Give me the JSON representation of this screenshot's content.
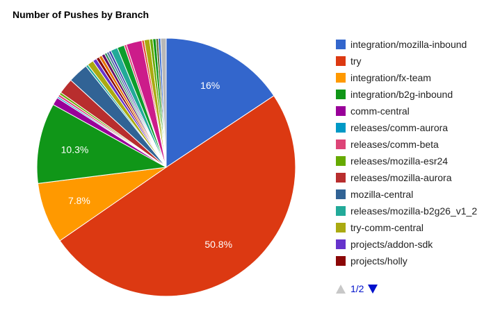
{
  "chart_data": {
    "type": "pie",
    "title": "Number of Pushes by Branch",
    "slices": [
      {
        "label": "integration/mozilla-inbound",
        "value": 16.0,
        "color": "#3366cc",
        "data_label": "16%"
      },
      {
        "label": "try",
        "value": 50.8,
        "color": "#dc3912",
        "data_label": "50.8%"
      },
      {
        "label": "integration/fx-team",
        "value": 7.8,
        "color": "#ff9900",
        "data_label": "7.8%"
      },
      {
        "label": "integration/b2g-inbound",
        "value": 10.3,
        "color": "#109618",
        "data_label": "10.3%"
      },
      {
        "label": "comm-central",
        "value": 1.0,
        "color": "#990099"
      },
      {
        "label": "releases/comm-aurora",
        "value": 0.2,
        "color": "#0099c6"
      },
      {
        "label": "releases/comm-beta",
        "value": 0.3,
        "color": "#dd4477"
      },
      {
        "label": "releases/mozilla-esr24",
        "value": 0.3,
        "color": "#66aa00"
      },
      {
        "label": "releases/mozilla-aurora",
        "value": 2.0,
        "color": "#b82e2e"
      },
      {
        "label": "mozilla-central",
        "value": 2.6,
        "color": "#316395"
      },
      {
        "label": "releases/mozilla-b2g26_v1_2",
        "value": 0.3,
        "color": "#22aa99"
      },
      {
        "label": "try-comm-central",
        "value": 0.8,
        "color": "#aaaa11"
      },
      {
        "label": "projects/addon-sdk",
        "value": 0.5,
        "color": "#6633cc"
      },
      {
        "label": "projects/holly",
        "value": 0.4,
        "color": "#8b0707"
      },
      {
        "label": "",
        "value": 0.4,
        "color": "#e67300"
      },
      {
        "label": "",
        "value": 0.4,
        "color": "#651067"
      },
      {
        "label": "",
        "value": 0.3,
        "color": "#329262"
      },
      {
        "label": "",
        "value": 0.3,
        "color": "#5574a6"
      },
      {
        "label": "",
        "value": 0.3,
        "color": "#3b3eac"
      },
      {
        "label": "",
        "value": 0.9,
        "color": "#22aa99"
      },
      {
        "label": "",
        "value": 0.9,
        "color": "#0c9d2c"
      },
      {
        "label": "",
        "value": 0.3,
        "color": "#dd4477"
      },
      {
        "label": "",
        "value": 2.0,
        "color": "#cc1c8a"
      },
      {
        "label": "",
        "value": 0.3,
        "color": "#e34c2a"
      },
      {
        "label": "",
        "value": 0.7,
        "color": "#aaaa11"
      },
      {
        "label": "",
        "value": 0.4,
        "color": "#66aa00"
      },
      {
        "label": "",
        "value": 0.4,
        "color": "#109618"
      },
      {
        "label": "",
        "value": 0.3,
        "color": "#5b6b2c"
      },
      {
        "label": "",
        "value": 0.3,
        "color": "#3366cc"
      },
      {
        "label": "",
        "value": 0.7,
        "color": "#b8b8b8"
      }
    ],
    "legend": {
      "position": "right",
      "visible_count": 14
    }
  },
  "pager": {
    "text": "1/2"
  }
}
